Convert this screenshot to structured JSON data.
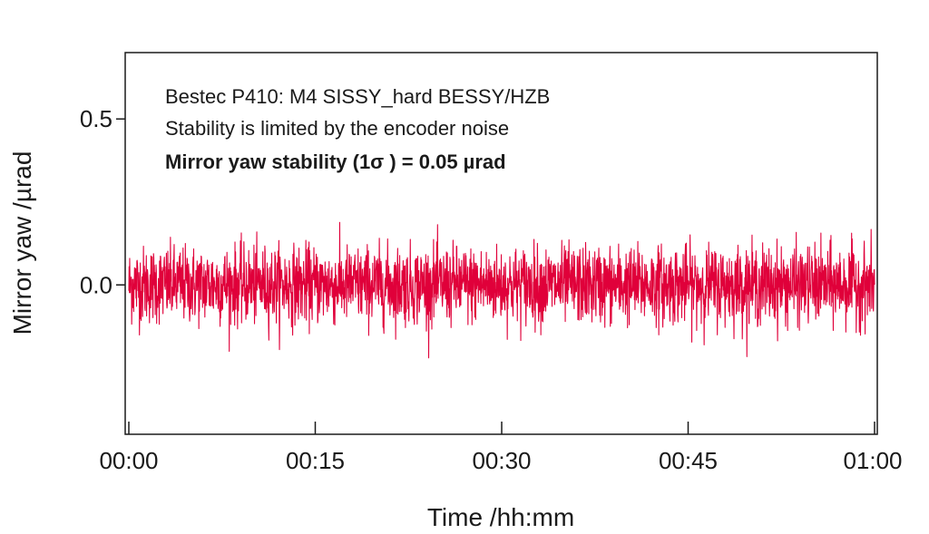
{
  "chart_data": {
    "type": "line",
    "title": "",
    "xlabel": "Time /hh:mm",
    "ylabel": "Mirror yaw /µrad",
    "x_ticks": [
      "00:00",
      "00:15",
      "00:30",
      "00:45",
      "01:00"
    ],
    "xlim_minutes": [
      0,
      60
    ],
    "y_ticks": [
      "0.5",
      "0.0"
    ],
    "y_tick_values": [
      0.5,
      0.0
    ],
    "ylim": [
      -0.45,
      0.7
    ],
    "grid": false,
    "legend": "none",
    "annotations": [
      "Bestec P410: M4 SISSY_hard BESSY/HZB",
      "Stability is limited by the encoder noise",
      "Mirror yaw stability (1σ ) = 0.05 µrad"
    ],
    "series": [
      {
        "color": "#e0003a",
        "mean": 0.0,
        "sigma": 0.05,
        "peak_max": 0.2,
        "peak_min": -0.22,
        "description_points": "dense noise trace over 0 to 60 minutes"
      }
    ]
  }
}
